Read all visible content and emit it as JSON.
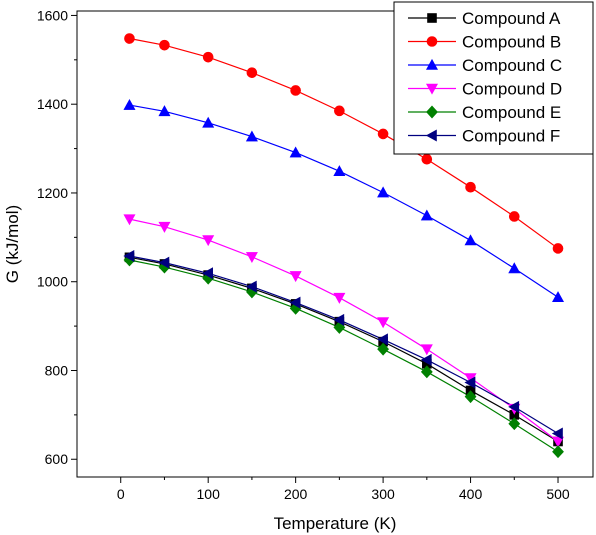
{
  "chart_data": {
    "type": "line",
    "title": "",
    "xlabel": "Temperature (K)",
    "ylabel": "G (kJ/mol)",
    "xlim": [
      -50,
      540
    ],
    "ylim": [
      560,
      1610
    ],
    "xticks": [
      0,
      100,
      200,
      300,
      400,
      500
    ],
    "xtick_labels": [
      "0",
      "100",
      "200",
      "300",
      "400",
      "500"
    ],
    "yticks": [
      600,
      800,
      1000,
      1200,
      1400,
      1600
    ],
    "ytick_labels": [
      "600",
      "800",
      "1000",
      "1200",
      "1400",
      "1600"
    ],
    "grid": false,
    "legend_position": "top-right",
    "x": [
      10,
      50,
      100,
      150,
      200,
      250,
      300,
      350,
      400,
      450,
      500
    ],
    "series": [
      {
        "name": "Compound A",
        "color": "#000000",
        "marker": "square",
        "values": [
          1055,
          1040,
          1015,
          985,
          950,
          910,
          865,
          815,
          755,
          700,
          640
        ]
      },
      {
        "name": "Compound B",
        "color": "#ff0000",
        "marker": "circle",
        "values": [
          1548,
          1533,
          1506,
          1471,
          1431,
          1385,
          1333,
          1276,
          1213,
          1147,
          1075
        ]
      },
      {
        "name": "Compound C",
        "color": "#0000ff",
        "marker": "triangle-up",
        "values": [
          1398,
          1384,
          1358,
          1327,
          1291,
          1249,
          1201,
          1149,
          1093,
          1030,
          965
        ]
      },
      {
        "name": "Compound D",
        "color": "#ff00ff",
        "marker": "triangle-down",
        "values": [
          1141,
          1124,
          1094,
          1056,
          1013,
          964,
          909,
          848,
          783,
          714,
          640
        ]
      },
      {
        "name": "Compound E",
        "color": "#008000",
        "marker": "diamond",
        "values": [
          1049,
          1033,
          1008,
          977,
          940,
          897,
          848,
          797,
          741,
          680,
          617
        ]
      },
      {
        "name": "Compound F",
        "color": "#000080",
        "marker": "triangle-left",
        "values": [
          1058,
          1043,
          1019,
          989,
          953,
          914,
          870,
          824,
          773,
          718,
          658
        ]
      }
    ]
  }
}
